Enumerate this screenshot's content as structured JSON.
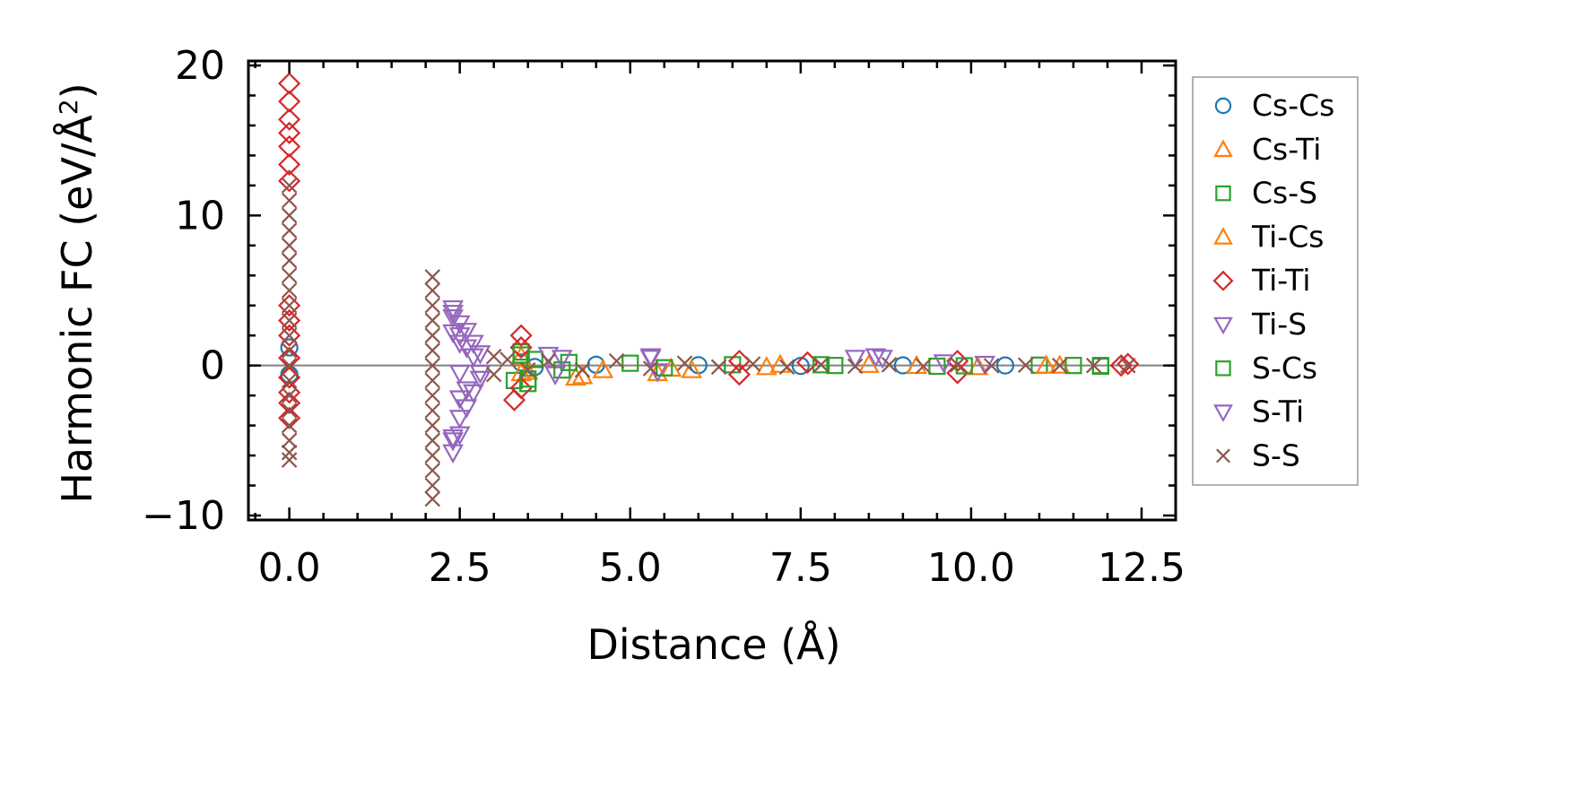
{
  "chart_data": {
    "type": "scatter",
    "title": "",
    "xlabel": "Distance (Å)",
    "ylabel_main": "Harmonic FC (eV/Å",
    "ylabel_sup": "2",
    "ylabel_close": ")",
    "xlim": [
      -0.6,
      13.0
    ],
    "ylim": [
      -10.3,
      20.3
    ],
    "x_ticks": [
      0.0,
      2.5,
      5.0,
      7.5,
      10.0,
      12.5
    ],
    "x_tick_labels": [
      "0.0",
      "2.5",
      "5.0",
      "7.5",
      "10.0",
      "12.5"
    ],
    "y_ticks": [
      -10,
      0,
      10,
      20
    ],
    "y_tick_labels": [
      "−10",
      "0",
      "10",
      "20"
    ],
    "zero_line": 0,
    "legend_position": "outside-right",
    "series": [
      {
        "name": "Cs-Cs",
        "marker": "circle",
        "color": "#1f77b4",
        "points": [
          [
            0.0,
            1.2
          ],
          [
            0.0,
            -0.6
          ],
          [
            3.4,
            0.2
          ],
          [
            3.6,
            -0.1
          ],
          [
            4.5,
            0.05
          ],
          [
            6.0,
            0.02
          ],
          [
            7.5,
            -0.03
          ],
          [
            9.0,
            0.01
          ],
          [
            10.5,
            0.0
          ]
        ]
      },
      {
        "name": "Cs-Ti",
        "marker": "triangle-up",
        "color": "#ff7f0e",
        "points": [
          [
            3.4,
            0.6
          ],
          [
            3.5,
            -0.4
          ],
          [
            4.2,
            -0.8
          ],
          [
            4.6,
            -0.3
          ],
          [
            5.4,
            -0.5
          ],
          [
            5.9,
            -0.3
          ],
          [
            7.0,
            -0.1
          ],
          [
            8.5,
            0.05
          ],
          [
            10.1,
            -0.1
          ],
          [
            11.3,
            0.0
          ]
        ]
      },
      {
        "name": "Cs-S",
        "marker": "square",
        "color": "#2ca02c",
        "points": [
          [
            3.3,
            -1.0
          ],
          [
            3.4,
            0.9
          ],
          [
            3.5,
            -1.2
          ],
          [
            3.6,
            0.4
          ],
          [
            4.0,
            -0.3
          ],
          [
            5.0,
            0.15
          ],
          [
            6.5,
            0.05
          ],
          [
            8.0,
            0.0
          ],
          [
            9.5,
            -0.05
          ],
          [
            11.0,
            0.02
          ],
          [
            11.9,
            0.0
          ]
        ]
      },
      {
        "name": "Ti-Cs",
        "marker": "triangle-up",
        "color": "#ff7f0e",
        "points": [
          [
            3.4,
            -0.5
          ],
          [
            4.3,
            -0.7
          ],
          [
            5.6,
            -0.2
          ],
          [
            7.2,
            0.05
          ],
          [
            9.2,
            -0.02
          ],
          [
            11.1,
            0.0
          ]
        ]
      },
      {
        "name": "Ti-Ti",
        "marker": "diamond",
        "color": "#d62728",
        "points": [
          [
            0.0,
            18.8
          ],
          [
            0.0,
            17.6
          ],
          [
            0.0,
            16.4
          ],
          [
            0.0,
            15.5
          ],
          [
            0.0,
            14.6
          ],
          [
            0.0,
            13.4
          ],
          [
            0.0,
            12.3
          ],
          [
            0.0,
            4.0
          ],
          [
            0.0,
            3.0
          ],
          [
            0.0,
            2.0
          ],
          [
            0.0,
            0.5
          ],
          [
            0.0,
            -0.8
          ],
          [
            0.0,
            -1.8
          ],
          [
            0.0,
            -2.5
          ],
          [
            0.0,
            -3.5
          ],
          [
            3.4,
            2.0
          ],
          [
            3.4,
            1.2
          ],
          [
            3.4,
            -1.5
          ],
          [
            3.3,
            -2.3
          ],
          [
            6.6,
            -0.6
          ],
          [
            6.6,
            0.3
          ],
          [
            7.6,
            0.2
          ],
          [
            9.8,
            -0.5
          ],
          [
            9.8,
            0.3
          ],
          [
            12.2,
            0.0
          ],
          [
            12.3,
            0.1
          ]
        ]
      },
      {
        "name": "Ti-S",
        "marker": "triangle-down",
        "color": "#9467bd",
        "points": [
          [
            2.4,
            3.8
          ],
          [
            2.4,
            3.2
          ],
          [
            2.4,
            2.2
          ],
          [
            2.4,
            -5.8
          ],
          [
            2.4,
            -5.0
          ],
          [
            2.5,
            2.8
          ],
          [
            2.5,
            1.5
          ],
          [
            2.5,
            -0.5
          ],
          [
            2.5,
            -3.5
          ],
          [
            2.5,
            -4.6
          ],
          [
            2.6,
            2.3
          ],
          [
            2.6,
            -2.8
          ],
          [
            2.7,
            1.5
          ],
          [
            2.7,
            -1.8
          ],
          [
            2.8,
            0.8
          ],
          [
            2.8,
            -0.9
          ],
          [
            3.8,
            0.7
          ],
          [
            3.9,
            -0.6
          ],
          [
            5.3,
            0.6
          ],
          [
            5.4,
            -0.4
          ],
          [
            8.3,
            0.5
          ],
          [
            8.6,
            0.6
          ],
          [
            9.6,
            0.2
          ]
        ]
      },
      {
        "name": "S-Cs",
        "marker": "square",
        "color": "#2ca02c",
        "points": [
          [
            3.4,
            0.7
          ],
          [
            3.5,
            -0.9
          ],
          [
            4.1,
            0.2
          ],
          [
            5.5,
            -0.15
          ],
          [
            7.8,
            0.05
          ],
          [
            9.9,
            -0.02
          ],
          [
            11.5,
            0.0
          ],
          [
            11.9,
            -0.05
          ]
        ]
      },
      {
        "name": "S-Ti",
        "marker": "triangle-down",
        "color": "#9467bd",
        "points": [
          [
            2.4,
            3.5
          ],
          [
            2.4,
            -4.8
          ],
          [
            2.5,
            2.0
          ],
          [
            2.5,
            -2.2
          ],
          [
            2.6,
            1.2
          ],
          [
            2.6,
            -1.6
          ],
          [
            2.7,
            0.6
          ],
          [
            2.8,
            -0.5
          ],
          [
            4.0,
            0.5
          ],
          [
            5.3,
            0.5
          ],
          [
            8.7,
            0.5
          ],
          [
            10.2,
            0.1
          ]
        ]
      },
      {
        "name": "S-S",
        "marker": "x",
        "color": "#8c564b",
        "points": [
          [
            0.0,
            12.0
          ],
          [
            0.0,
            11.0
          ],
          [
            0.0,
            10.0
          ],
          [
            0.0,
            9.0
          ],
          [
            0.0,
            8.0
          ],
          [
            0.0,
            7.0
          ],
          [
            0.0,
            6.0
          ],
          [
            0.0,
            5.0
          ],
          [
            0.0,
            4.0
          ],
          [
            0.0,
            3.0
          ],
          [
            0.0,
            2.0
          ],
          [
            0.0,
            1.0
          ],
          [
            0.0,
            0.0
          ],
          [
            0.0,
            -1.0
          ],
          [
            0.0,
            -2.0
          ],
          [
            0.0,
            -3.0
          ],
          [
            0.0,
            -4.0
          ],
          [
            0.0,
            -5.0
          ],
          [
            0.0,
            -5.8
          ],
          [
            0.0,
            -6.3
          ],
          [
            2.1,
            5.9
          ],
          [
            2.1,
            5.0
          ],
          [
            2.1,
            4.0
          ],
          [
            2.1,
            3.0
          ],
          [
            2.1,
            2.0
          ],
          [
            2.1,
            1.0
          ],
          [
            2.1,
            0.0
          ],
          [
            2.1,
            -1.0
          ],
          [
            2.1,
            -2.0
          ],
          [
            2.1,
            -3.0
          ],
          [
            2.1,
            -4.0
          ],
          [
            2.1,
            -5.0
          ],
          [
            2.1,
            -6.0
          ],
          [
            2.1,
            -7.0
          ],
          [
            2.1,
            -8.0
          ],
          [
            2.1,
            -8.9
          ],
          [
            3.0,
            0.6
          ],
          [
            3.0,
            -0.6
          ],
          [
            3.2,
            0.4
          ],
          [
            3.5,
            -0.3
          ],
          [
            3.8,
            0.3
          ],
          [
            4.3,
            -0.3
          ],
          [
            4.8,
            0.3
          ],
          [
            5.3,
            -0.2
          ],
          [
            5.8,
            0.15
          ],
          [
            6.3,
            -0.1
          ],
          [
            6.8,
            0.1
          ],
          [
            7.3,
            -0.1
          ],
          [
            7.8,
            0.05
          ],
          [
            8.3,
            -0.05
          ],
          [
            8.8,
            0.05
          ],
          [
            9.3,
            -0.05
          ],
          [
            9.8,
            0.05
          ],
          [
            10.3,
            -0.02
          ],
          [
            10.8,
            0.02
          ],
          [
            11.3,
            0.0
          ],
          [
            11.8,
            0.0
          ],
          [
            12.3,
            0.0
          ]
        ]
      }
    ]
  }
}
